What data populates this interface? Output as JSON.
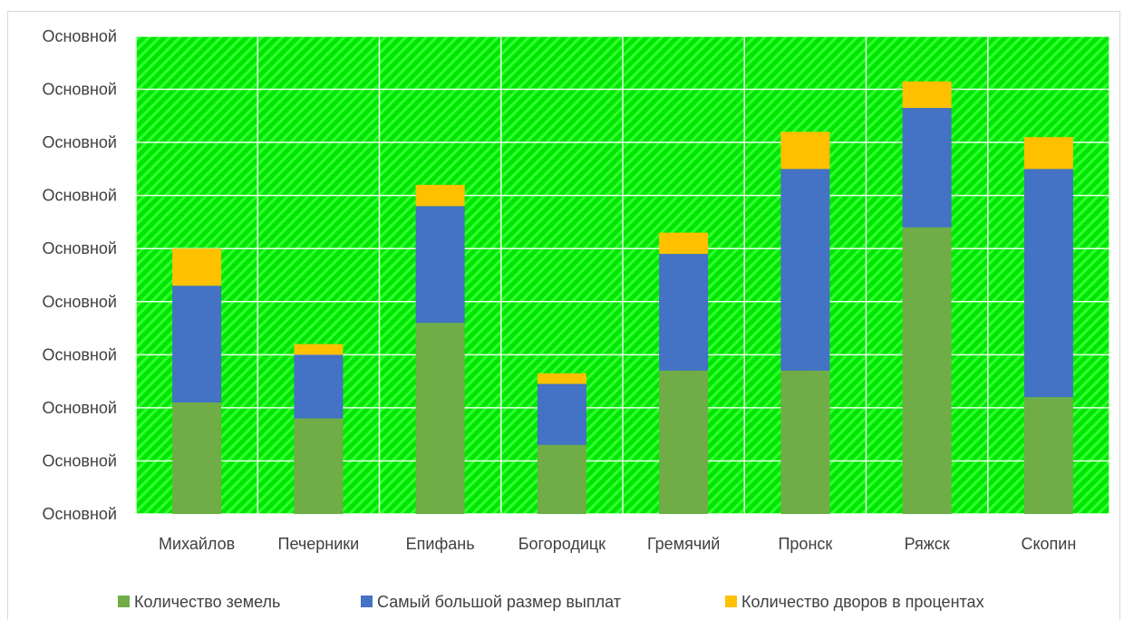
{
  "chart_data": {
    "type": "bar",
    "stacked": true,
    "categories": [
      "Михайлов",
      "Печерники",
      "Епифань",
      "Богородицк",
      "Гремячий",
      "Пронск",
      "Ряжск",
      "Скопин"
    ],
    "series": [
      {
        "name": "Количество земель",
        "color": "#70AD47",
        "values": [
          2.1,
          1.8,
          3.6,
          1.3,
          2.7,
          2.7,
          5.4,
          2.2
        ]
      },
      {
        "name": "Самый большой размер выплат",
        "color": "#4472C4",
        "values": [
          2.2,
          1.2,
          2.2,
          1.15,
          2.2,
          3.8,
          2.25,
          4.3
        ]
      },
      {
        "name": "Количество дворов в процентах",
        "color": "#FFC000",
        "values": [
          0.7,
          0.2,
          0.4,
          0.2,
          0.4,
          0.7,
          0.5,
          0.6
        ]
      }
    ],
    "ylim": [
      0,
      9
    ],
    "y_tick_labels": [
      "Основной",
      "Основной",
      "Основной",
      "Основной",
      "Основной",
      "Основной",
      "Основной",
      "Основной",
      "Основной",
      "Основной"
    ],
    "plot_background": "green diagonal hatch",
    "grid": true,
    "legend": "bottom"
  }
}
